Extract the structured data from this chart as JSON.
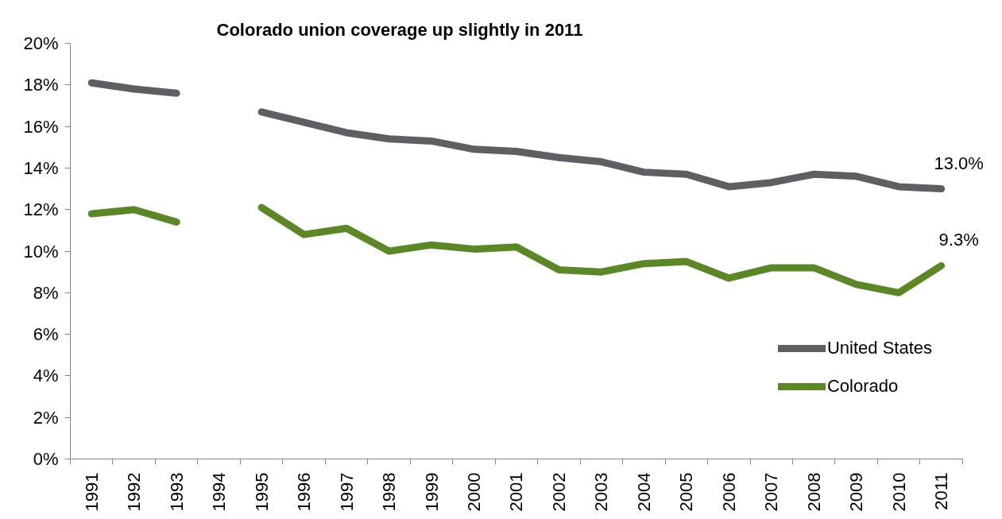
{
  "chart_data": {
    "type": "line",
    "title": "Colorado union coverage up slightly in 2011",
    "categories": [
      "1991",
      "1992",
      "1993",
      "1994",
      "1995",
      "1996",
      "1997",
      "1998",
      "1999",
      "2000",
      "2001",
      "2002",
      "2003",
      "2004",
      "2005",
      "2006",
      "2007",
      "2008",
      "2009",
      "2010",
      "2011"
    ],
    "series": [
      {
        "name": "United States",
        "color": "#5d5f62",
        "values": [
          18.1,
          17.8,
          17.6,
          null,
          16.7,
          16.2,
          15.7,
          15.4,
          15.3,
          14.9,
          14.8,
          14.5,
          14.3,
          13.8,
          13.7,
          13.1,
          13.3,
          13.7,
          13.6,
          13.1,
          13.0
        ],
        "value_labels": [
          null,
          null,
          null,
          null,
          null,
          null,
          null,
          null,
          null,
          null,
          null,
          null,
          null,
          null,
          null,
          null,
          null,
          null,
          null,
          null,
          "13.0%"
        ]
      },
      {
        "name": "Colorado",
        "color": "#5b8726",
        "values": [
          11.8,
          12.0,
          11.4,
          null,
          12.1,
          10.8,
          11.1,
          10.0,
          10.3,
          10.1,
          10.2,
          9.1,
          9.0,
          9.4,
          9.5,
          8.7,
          9.2,
          9.2,
          8.4,
          8.0,
          9.3
        ],
        "value_labels": [
          null,
          null,
          null,
          null,
          null,
          null,
          null,
          null,
          null,
          null,
          null,
          null,
          null,
          null,
          null,
          null,
          null,
          null,
          null,
          null,
          "9.3%"
        ]
      }
    ],
    "ylim": [
      0,
      20
    ],
    "yticks": [
      {
        "value": 0,
        "label": "0%"
      },
      {
        "value": 2,
        "label": "2%"
      },
      {
        "value": 4,
        "label": "4%"
      },
      {
        "value": 6,
        "label": "6%"
      },
      {
        "value": 8,
        "label": "8%"
      },
      {
        "value": 10,
        "label": "10%"
      },
      {
        "value": 12,
        "label": "12%"
      },
      {
        "value": 14,
        "label": "14%"
      },
      {
        "value": 16,
        "label": "16%"
      },
      {
        "value": 18,
        "label": "18%"
      },
      {
        "value": 20,
        "label": "20%"
      }
    ],
    "legend": "bottom right"
  }
}
